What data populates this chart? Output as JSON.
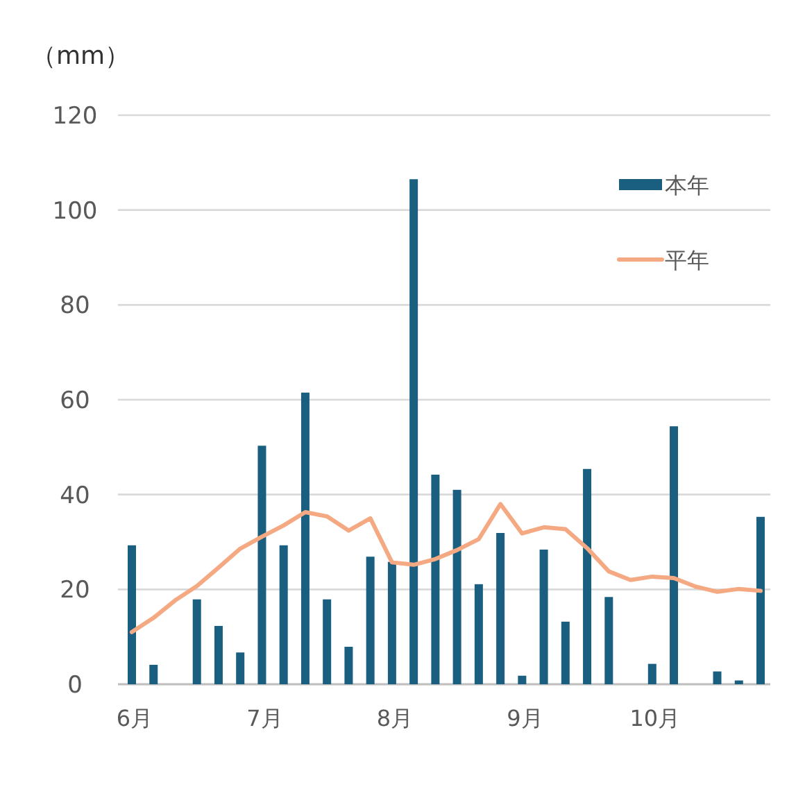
{
  "chart_data": {
    "type": "bar",
    "ylabel": "（mm）",
    "categories": [
      "6月",
      null,
      null,
      null,
      null,
      null,
      "7月",
      null,
      null,
      null,
      null,
      null,
      "8月",
      null,
      null,
      null,
      null,
      null,
      "9月",
      null,
      null,
      null,
      null,
      null,
      "10月",
      null,
      null,
      null,
      null,
      null
    ],
    "series": [
      {
        "name": "本年",
        "color": "#1a5f80",
        "values": [
          29.3,
          4.1,
          null,
          17.9,
          12.3,
          6.7,
          50.3,
          29.3,
          61.5,
          17.9,
          7.9,
          26.9,
          25.8,
          106.5,
          44.2,
          41.0,
          21.1,
          31.9,
          1.8,
          28.4,
          13.2,
          45.4,
          18.4,
          null,
          4.3,
          54.4,
          null,
          2.7,
          0.8,
          35.3
        ]
      },
      {
        "name": "平年",
        "type": "line",
        "color": "#f4a982",
        "values": [
          11.0,
          14.0,
          17.7,
          20.7,
          24.6,
          28.6,
          31.1,
          33.5,
          36.3,
          35.4,
          32.4,
          35.0,
          25.7,
          25.2,
          26.4,
          28.3,
          30.6,
          38.0,
          31.8,
          33.1,
          32.7,
          28.7,
          23.8,
          22.0,
          22.7,
          22.4,
          20.6,
          19.5,
          20.1,
          19.7
        ]
      }
    ],
    "ylim": [
      0,
      120
    ],
    "yticks": [
      0,
      20,
      40,
      60,
      80,
      100,
      120
    ],
    "grid": "y",
    "legend": "top right"
  }
}
